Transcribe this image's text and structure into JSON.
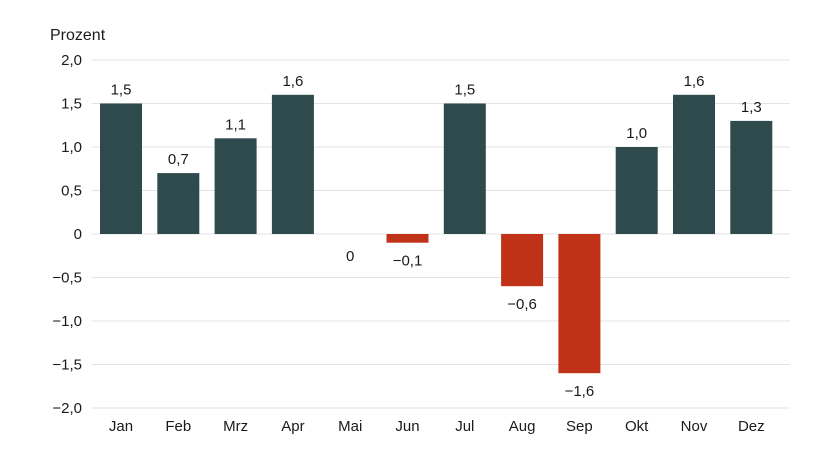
{
  "chart_data": {
    "type": "bar",
    "unit_label": "Prozent",
    "categories": [
      "Jan",
      "Feb",
      "Mrz",
      "Apr",
      "Mai",
      "Jun",
      "Jul",
      "Aug",
      "Sep",
      "Okt",
      "Nov",
      "Dez"
    ],
    "values": [
      1.5,
      0.7,
      1.1,
      1.6,
      0,
      -0.1,
      1.5,
      -0.6,
      -1.6,
      1.0,
      1.6,
      1.3
    ],
    "value_labels": [
      "1,5",
      "0,7",
      "1,1",
      "1,6",
      "0",
      "−0,1",
      "1,5",
      "−0,6",
      "−1,6",
      "1,0",
      "1,6",
      "1,3"
    ],
    "ylim": [
      -2.0,
      2.0
    ],
    "yticks": [
      2.0,
      1.5,
      1.0,
      0.5,
      0,
      -0.5,
      -1.0,
      -1.5,
      -2.0
    ],
    "ytick_labels": [
      "2,0",
      "1,5",
      "1,0",
      "0,5",
      "0",
      "−0,5",
      "−1,0",
      "−1,5",
      "−2,0"
    ],
    "grid": true,
    "colors": {
      "positive": "#2e4a4d",
      "negative": "#c03218",
      "grid": "#e3e3e3"
    }
  }
}
